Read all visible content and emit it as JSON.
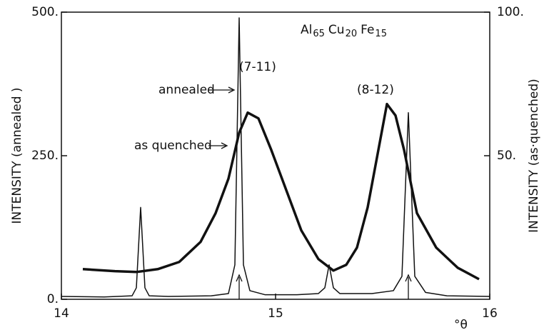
{
  "chart_data": {
    "type": "line",
    "title": [
      "Al",
      "65",
      "Cu",
      "20",
      "Fe",
      "15"
    ],
    "x_label": "°θ",
    "y_label": "INTENSITY (annealed )",
    "y2_label": "INTENSITY (as·quenched)",
    "annotations": [
      "(7-11)",
      "(8-12)",
      "annealed",
      "as quenched"
    ],
    "xlim": [
      14,
      16
    ],
    "xticks": [
      14,
      15,
      16
    ],
    "ylim": [
      0,
      500
    ],
    "yticks": [
      {
        "value": 0,
        "label": "0."
      },
      {
        "value": 250,
        "label": "250."
      },
      {
        "value": 500,
        "label": "500."
      }
    ],
    "y2lim": [
      0,
      100
    ],
    "y2ticks": [
      {
        "value": 50,
        "label": "50."
      },
      {
        "value": 100,
        "label": "100."
      }
    ],
    "series": [
      {
        "name": "annealed",
        "color": "#111111",
        "x": [
          14,
          14.2,
          14.33,
          14.35,
          14.37,
          14.39,
          14.41,
          14.5,
          14.7,
          14.78,
          14.81,
          14.83,
          14.85,
          14.88,
          14.95,
          15.1,
          15.2,
          15.23,
          15.25,
          15.27,
          15.3,
          15.45,
          15.55,
          15.59,
          15.62,
          15.65,
          15.7,
          15.8,
          16
        ],
        "values": [
          5,
          4,
          6,
          20,
          160,
          20,
          6,
          5,
          6,
          10,
          60,
          490,
          60,
          15,
          8,
          8,
          10,
          20,
          60,
          20,
          10,
          10,
          15,
          40,
          325,
          40,
          12,
          6,
          5
        ]
      },
      {
        "name": "as quenched",
        "color": "#111111",
        "axis": "y2",
        "x": [
          14.1,
          14.25,
          14.35,
          14.45,
          14.55,
          14.65,
          14.72,
          14.78,
          14.83,
          14.87,
          14.92,
          14.98,
          15.05,
          15.12,
          15.2,
          15.27,
          15.33,
          15.38,
          15.43,
          15.48,
          15.52,
          15.56,
          15.6,
          15.66,
          15.75,
          15.85,
          15.95
        ],
        "values": [
          10.5,
          9.8,
          9.5,
          10.5,
          13,
          20,
          30,
          42,
          58,
          65,
          63,
          52,
          38,
          24,
          14,
          10,
          12,
          18,
          32,
          52,
          68,
          64,
          52,
          30,
          18,
          11,
          7
        ]
      }
    ]
  }
}
